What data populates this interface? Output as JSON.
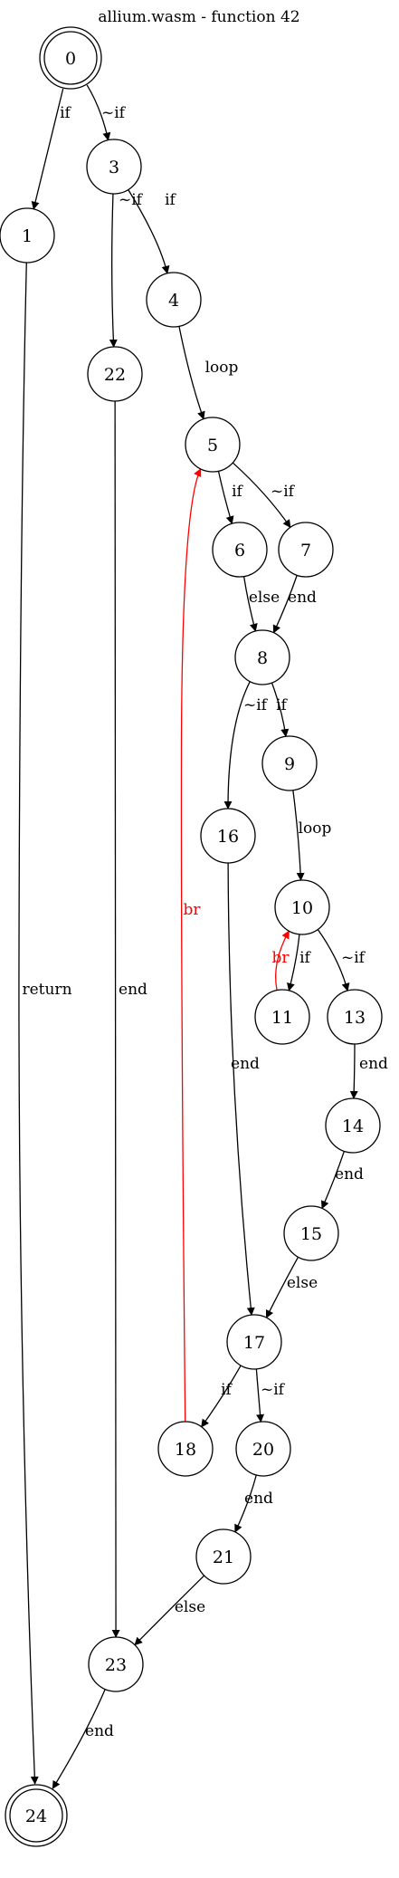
{
  "title": "allium.wasm - function 42",
  "colors": {
    "normal": "#000000",
    "branch": "#ff0000"
  },
  "nodes": [
    {
      "id": "0",
      "final": true
    },
    {
      "id": "1"
    },
    {
      "id": "3"
    },
    {
      "id": "4"
    },
    {
      "id": "22"
    },
    {
      "id": "5"
    },
    {
      "id": "6"
    },
    {
      "id": "7"
    },
    {
      "id": "8"
    },
    {
      "id": "9"
    },
    {
      "id": "16"
    },
    {
      "id": "10"
    },
    {
      "id": "11"
    },
    {
      "id": "13"
    },
    {
      "id": "14"
    },
    {
      "id": "15"
    },
    {
      "id": "17"
    },
    {
      "id": "18"
    },
    {
      "id": "20"
    },
    {
      "id": "21"
    },
    {
      "id": "23"
    },
    {
      "id": "24",
      "final": true
    }
  ],
  "edges": [
    {
      "from": "0",
      "to": "1",
      "label": "if",
      "color": "normal"
    },
    {
      "from": "0",
      "to": "3",
      "label": "~if",
      "color": "normal"
    },
    {
      "from": "1",
      "to": "24",
      "label": "return",
      "color": "normal"
    },
    {
      "from": "3",
      "to": "22",
      "label": "~if",
      "color": "normal"
    },
    {
      "from": "3",
      "to": "4",
      "label": "if",
      "color": "normal"
    },
    {
      "from": "4",
      "to": "5",
      "label": "loop",
      "color": "normal"
    },
    {
      "from": "22",
      "to": "23",
      "label": "end",
      "color": "normal"
    },
    {
      "from": "5",
      "to": "6",
      "label": "if",
      "color": "normal"
    },
    {
      "from": "5",
      "to": "7",
      "label": "~if",
      "color": "normal"
    },
    {
      "from": "6",
      "to": "8",
      "label": "else",
      "color": "normal"
    },
    {
      "from": "7",
      "to": "8",
      "label": "end",
      "color": "normal"
    },
    {
      "from": "8",
      "to": "16",
      "label": "~if",
      "color": "normal"
    },
    {
      "from": "8",
      "to": "9",
      "label": "if",
      "color": "normal"
    },
    {
      "from": "9",
      "to": "10",
      "label": "loop",
      "color": "normal"
    },
    {
      "from": "10",
      "to": "11",
      "label": "if",
      "color": "normal"
    },
    {
      "from": "10",
      "to": "13",
      "label": "~if",
      "color": "normal"
    },
    {
      "from": "11",
      "to": "10",
      "label": "br",
      "color": "branch"
    },
    {
      "from": "13",
      "to": "14",
      "label": "end",
      "color": "normal"
    },
    {
      "from": "14",
      "to": "15",
      "label": "end",
      "color": "normal"
    },
    {
      "from": "15",
      "to": "17",
      "label": "else",
      "color": "normal"
    },
    {
      "from": "16",
      "to": "17",
      "label": "end",
      "color": "normal"
    },
    {
      "from": "17",
      "to": "18",
      "label": "if",
      "color": "normal"
    },
    {
      "from": "17",
      "to": "20",
      "label": "~if",
      "color": "normal"
    },
    {
      "from": "18",
      "to": "5",
      "label": "br",
      "color": "branch"
    },
    {
      "from": "20",
      "to": "21",
      "label": "end",
      "color": "normal"
    },
    {
      "from": "21",
      "to": "23",
      "label": "else",
      "color": "normal"
    },
    {
      "from": "23",
      "to": "24",
      "label": "end",
      "color": "normal"
    }
  ]
}
